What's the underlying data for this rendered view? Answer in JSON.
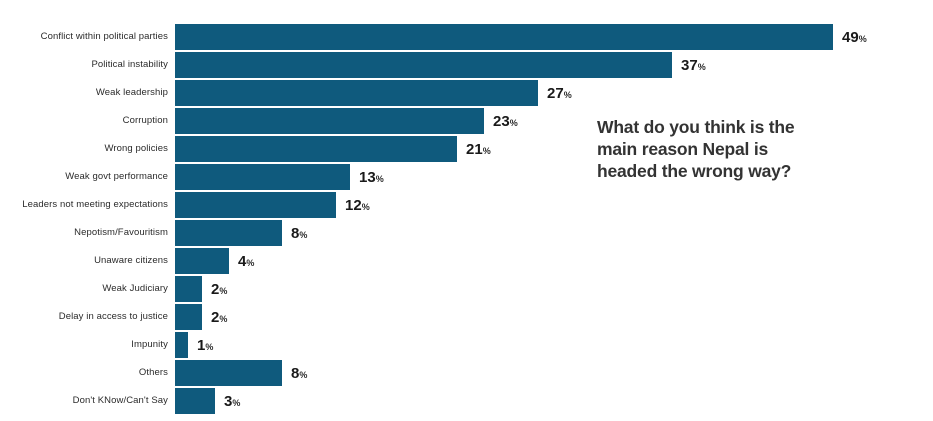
{
  "question": {
    "text": "What do you think is the main reason Nepal is headed the wrong way?",
    "lines": [
      "What do you think is the",
      "main reason Nepal is",
      "headed the wrong way?"
    ]
  },
  "chart_data": {
    "type": "bar",
    "orientation": "horizontal",
    "title": "What do you think is the main reason Nepal is headed the wrong way?",
    "categories": [
      "Conflict within political parties",
      "Political instability",
      "Weak leadership",
      "Corruption",
      "Wrong policies",
      "Weak govt performance",
      "Leaders not meeting expectations",
      "Nepotism/Favouritism",
      "Unaware citizens",
      "Weak Judiciary",
      "Delay in access to justice",
      "Impunity",
      "Others",
      "Don't KNow/Can't Say"
    ],
    "values": [
      49,
      37,
      27,
      23,
      21,
      13,
      12,
      8,
      4,
      2,
      2,
      1,
      8,
      3
    ],
    "value_suffix": "%",
    "xlim": [
      0,
      49
    ],
    "bar_color": "#0f5a7d",
    "grid": false,
    "legend": null,
    "xlabel": "",
    "ylabel": ""
  }
}
